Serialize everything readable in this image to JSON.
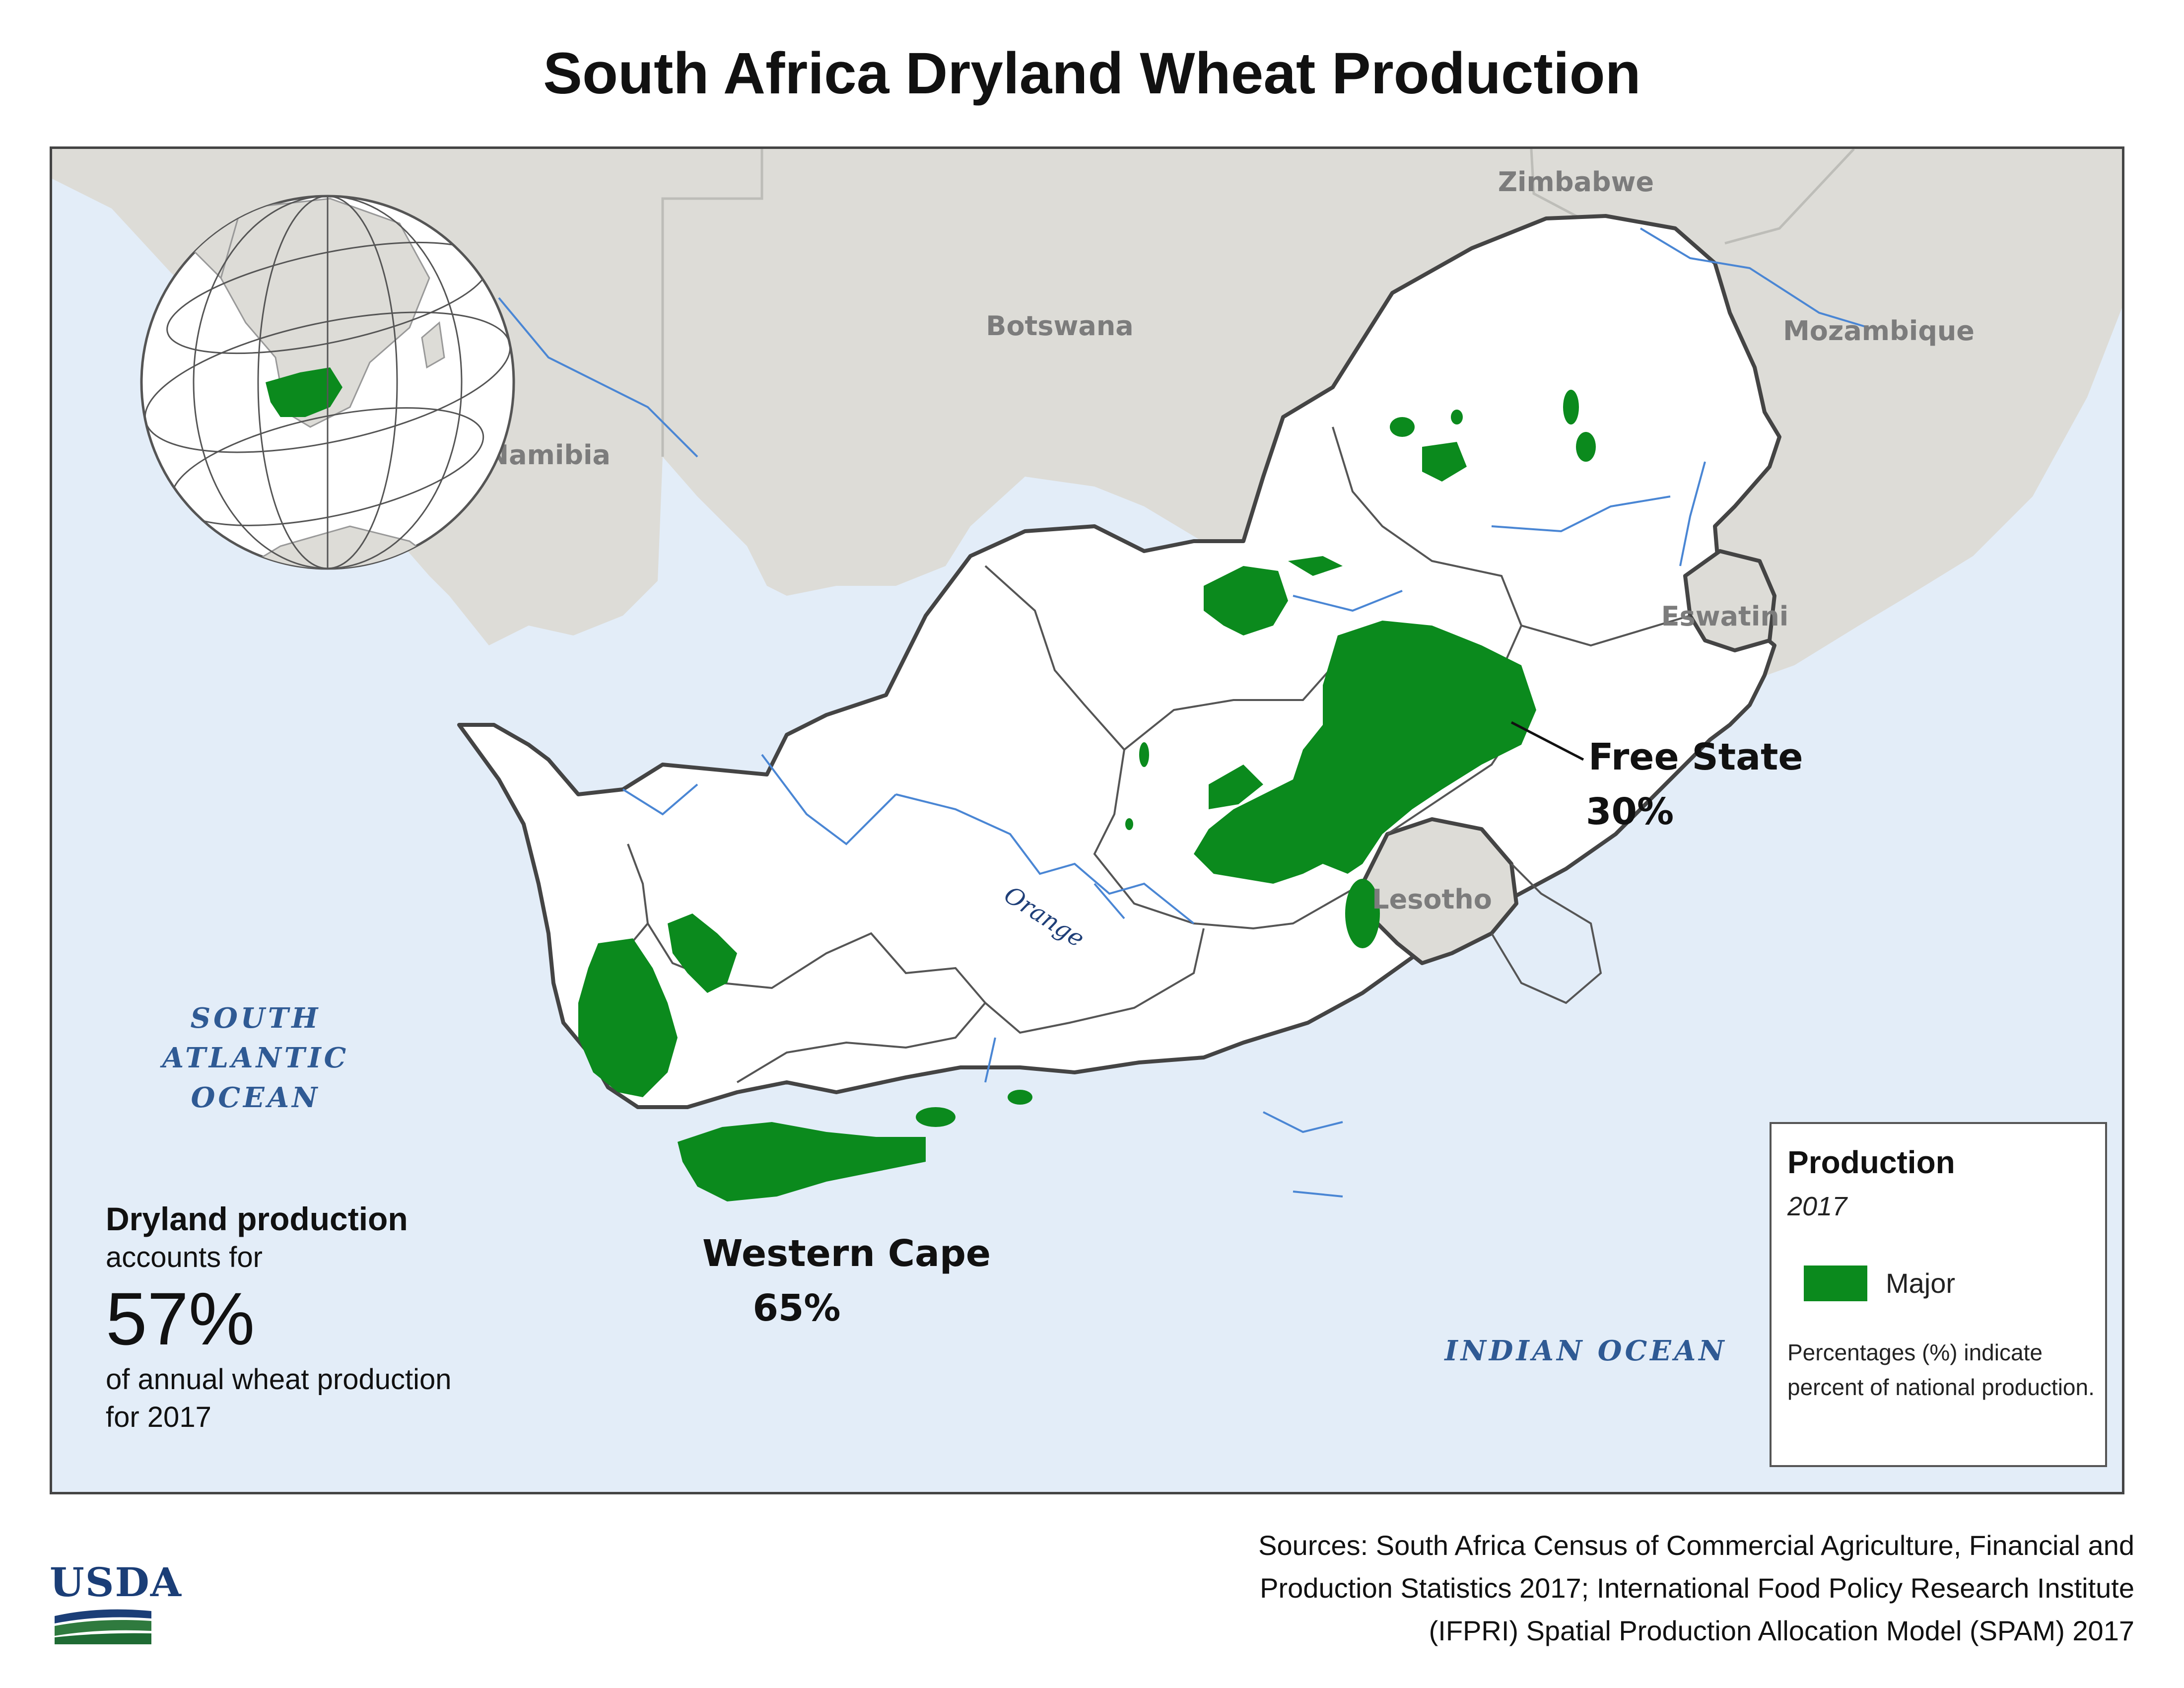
{
  "title": "South Africa Dryland Wheat Production",
  "map": {
    "countries": {
      "zimbabwe": "Zimbabwe",
      "botswana": "Botswana",
      "mozambique": "Mozambique",
      "namibia": "Namibia",
      "eswatini": "Eswatini",
      "lesotho": "Lesotho"
    },
    "oceans": {
      "atlantic_line1": "SOUTH",
      "atlantic_line2": "ATLANTIC",
      "atlantic_line3": "OCEAN",
      "indian": "INDIAN OCEAN"
    },
    "river": "Orange",
    "provinces": [
      {
        "name": "Free State",
        "share": "30%"
      },
      {
        "name": "Western Cape",
        "share": "65%"
      }
    ],
    "colors": {
      "production": "#0b8a1d",
      "ocean": "#e3edf8",
      "neighbor_land": "#dddcd7",
      "country_border": "#444444",
      "river": "#4a86d4"
    }
  },
  "dryland": {
    "heading": "Dryland production",
    "line1": "accounts for",
    "percent": "57%",
    "line2": "of annual wheat production",
    "line3": "for 2017"
  },
  "legend": {
    "title": "Production",
    "year": "2017",
    "item": "Major",
    "note": "Percentages (%) indicate percent of national production."
  },
  "logo": {
    "text": "USDA"
  },
  "sources": {
    "line1": "Sources: South Africa Census of Commercial Agriculture, Financial and",
    "line2": "Production Statistics 2017; International Food Policy Research Institute",
    "line3": "(IFPRI) Spatial Production Allocation Model (SPAM) 2017"
  }
}
